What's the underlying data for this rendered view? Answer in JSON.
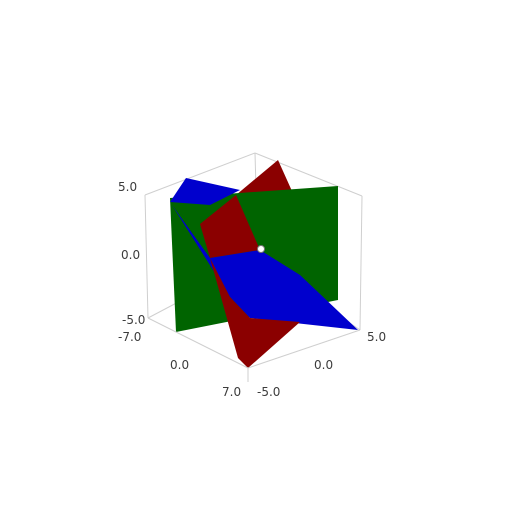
{
  "figure": {
    "type": "3d-plot",
    "background": "#ffffff",
    "box_edge_color": "#cfcfcf"
  },
  "axes": {
    "vertical_ticks": [
      "5.0",
      "0.0",
      "-5.0"
    ],
    "left_depth_ticks": [
      "-7.0",
      "0.0",
      "7.0"
    ],
    "right_depth_ticks": [
      "-5.0",
      "0.0",
      "5.0"
    ]
  },
  "planes": [
    {
      "name": "green",
      "color": "#006400"
    },
    {
      "name": "red",
      "color": "#8b0000"
    },
    {
      "name": "blue",
      "color": "#0000cd"
    }
  ],
  "marker": {
    "name": "intersection-point",
    "color": "#ffffff"
  }
}
